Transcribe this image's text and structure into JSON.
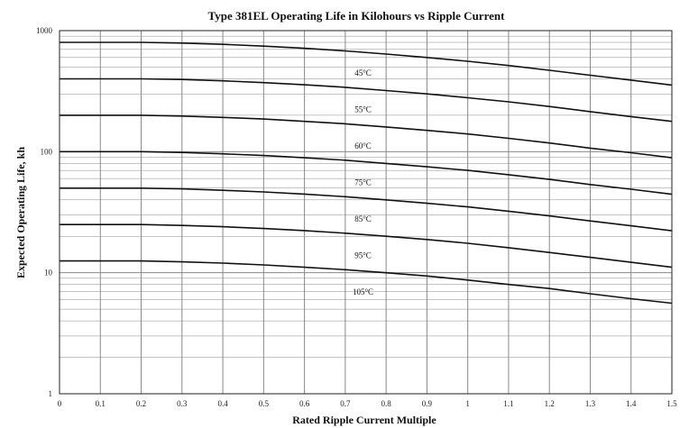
{
  "chart_data": {
    "type": "line",
    "title": "Type 381EL Operating Life in Kilohours vs Ripple Current",
    "xlabel": "Rated Ripple Current Multiple",
    "ylabel": "Expected Operating Life, kh",
    "xlim": [
      0,
      1.5
    ],
    "ylim": [
      1,
      1000
    ],
    "yscale": "log",
    "grid": true,
    "x_ticks": [
      "0",
      "0.1",
      "0.2",
      "0.3",
      "0.4",
      "0.5",
      "0.6",
      "0.7",
      "0.8",
      "0.9",
      "1",
      "1.1",
      "1.2",
      "1.3",
      "1.4",
      "1.5"
    ],
    "y_ticks": [
      "1",
      "10",
      "100",
      "1000"
    ],
    "x": [
      0,
      0.1,
      0.2,
      0.3,
      0.4,
      0.5,
      0.6,
      0.7,
      0.8,
      0.9,
      1.0,
      1.1,
      1.2,
      1.3,
      1.4,
      1.5
    ],
    "series": [
      {
        "name": "45°C",
        "values": [
          800,
          800,
          800,
          790,
          770,
          745,
          715,
          680,
          640,
          600,
          558,
          515,
          470,
          428,
          390,
          355
        ]
      },
      {
        "name": "55°C",
        "values": [
          400,
          400,
          400,
          395,
          385,
          372,
          357,
          340,
          320,
          300,
          279,
          258,
          236,
          214,
          195,
          178
        ]
      },
      {
        "name": "60°C",
        "values": [
          200,
          200,
          200,
          197,
          192,
          186,
          178,
          170,
          160,
          150,
          140,
          129,
          118,
          107,
          98,
          89
        ]
      },
      {
        "name": "75°C",
        "values": [
          100,
          100,
          100,
          98.5,
          96,
          93,
          89,
          85,
          80,
          75,
          70,
          64.5,
          59,
          53.5,
          49,
          44.5
        ]
      },
      {
        "name": "85°C",
        "values": [
          50,
          50,
          50,
          49.3,
          48,
          46.5,
          44.6,
          42.5,
          40,
          37.5,
          35,
          32.2,
          29.5,
          26.8,
          24.4,
          22.2
        ]
      },
      {
        "name": "95°C",
        "values": [
          25,
          25,
          25,
          24.6,
          24,
          23.2,
          22.3,
          21.2,
          20,
          18.8,
          17.5,
          16.1,
          14.7,
          13.4,
          12.2,
          11.1
        ]
      },
      {
        "name": "105°C",
        "values": [
          12.5,
          12.5,
          12.5,
          12.3,
          12,
          11.6,
          11.1,
          10.6,
          10,
          9.4,
          8.7,
          8.0,
          7.4,
          6.7,
          6.1,
          5.6
        ]
      }
    ],
    "curve_color": "#111111",
    "grid_color": "#888888"
  }
}
